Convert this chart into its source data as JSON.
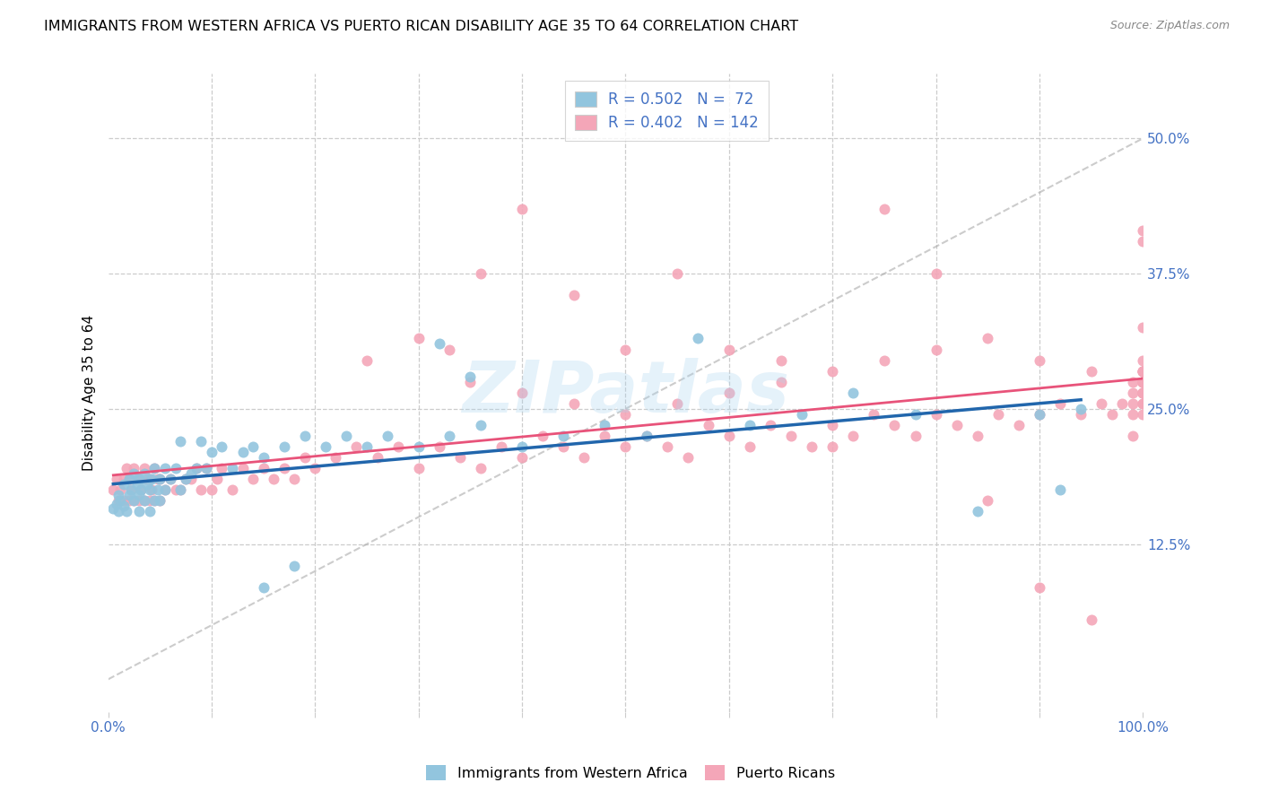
{
  "title": "IMMIGRANTS FROM WESTERN AFRICA VS PUERTO RICAN DISABILITY AGE 35 TO 64 CORRELATION CHART",
  "source": "Source: ZipAtlas.com",
  "ylabel": "Disability Age 35 to 64",
  "xlim": [
    0.0,
    1.0
  ],
  "ylim": [
    -0.03,
    0.56
  ],
  "blue_color": "#92c5de",
  "pink_color": "#f4a6b8",
  "blue_line_color": "#2166ac",
  "pink_line_color": "#e8537a",
  "watermark_text": "ZIPatlas",
  "title_fontsize": 11.5,
  "label_fontsize": 11,
  "tick_fontsize": 11,
  "y_tick_vals": [
    0.125,
    0.25,
    0.375,
    0.5
  ],
  "y_tick_labels": [
    "12.5%",
    "25.0%",
    "37.5%",
    "50.0%"
  ],
  "blue_scatter_x": [
    0.005,
    0.008,
    0.01,
    0.01,
    0.012,
    0.015,
    0.015,
    0.018,
    0.02,
    0.02,
    0.022,
    0.025,
    0.025,
    0.028,
    0.03,
    0.03,
    0.03,
    0.032,
    0.035,
    0.035,
    0.038,
    0.04,
    0.04,
    0.042,
    0.045,
    0.045,
    0.048,
    0.05,
    0.05,
    0.055,
    0.055,
    0.06,
    0.065,
    0.07,
    0.07,
    0.075,
    0.08,
    0.085,
    0.09,
    0.095,
    0.1,
    0.11,
    0.12,
    0.13,
    0.14,
    0.15,
    0.17,
    0.19,
    0.21,
    0.23,
    0.25,
    0.27,
    0.3,
    0.33,
    0.36,
    0.4,
    0.44,
    0.48,
    0.52,
    0.57,
    0.62,
    0.67,
    0.72,
    0.78,
    0.84,
    0.9,
    0.92,
    0.94,
    0.32,
    0.35,
    0.15,
    0.18
  ],
  "blue_scatter_y": [
    0.158,
    0.162,
    0.155,
    0.17,
    0.165,
    0.18,
    0.16,
    0.155,
    0.185,
    0.17,
    0.175,
    0.165,
    0.19,
    0.18,
    0.155,
    0.17,
    0.185,
    0.175,
    0.165,
    0.19,
    0.18,
    0.155,
    0.175,
    0.185,
    0.165,
    0.195,
    0.175,
    0.165,
    0.185,
    0.175,
    0.195,
    0.185,
    0.195,
    0.175,
    0.22,
    0.185,
    0.19,
    0.195,
    0.22,
    0.195,
    0.21,
    0.215,
    0.195,
    0.21,
    0.215,
    0.205,
    0.215,
    0.225,
    0.215,
    0.225,
    0.215,
    0.225,
    0.215,
    0.225,
    0.235,
    0.215,
    0.225,
    0.235,
    0.225,
    0.315,
    0.235,
    0.245,
    0.265,
    0.245,
    0.155,
    0.245,
    0.175,
    0.25,
    0.31,
    0.28,
    0.085,
    0.105
  ],
  "pink_scatter_x": [
    0.005,
    0.008,
    0.01,
    0.012,
    0.015,
    0.015,
    0.018,
    0.02,
    0.02,
    0.022,
    0.025,
    0.025,
    0.028,
    0.03,
    0.03,
    0.032,
    0.035,
    0.035,
    0.038,
    0.04,
    0.04,
    0.042,
    0.045,
    0.045,
    0.048,
    0.05,
    0.05,
    0.055,
    0.06,
    0.065,
    0.07,
    0.075,
    0.08,
    0.085,
    0.09,
    0.095,
    0.1,
    0.105,
    0.11,
    0.12,
    0.13,
    0.14,
    0.15,
    0.16,
    0.17,
    0.18,
    0.19,
    0.2,
    0.22,
    0.24,
    0.26,
    0.28,
    0.3,
    0.32,
    0.34,
    0.36,
    0.38,
    0.4,
    0.42,
    0.44,
    0.46,
    0.48,
    0.5,
    0.52,
    0.54,
    0.56,
    0.58,
    0.6,
    0.62,
    0.64,
    0.66,
    0.68,
    0.7,
    0.72,
    0.74,
    0.76,
    0.78,
    0.8,
    0.82,
    0.84,
    0.86,
    0.88,
    0.9,
    0.92,
    0.94,
    0.96,
    0.97,
    0.98,
    0.99,
    0.99,
    0.99,
    1.0,
    1.0,
    1.0,
    1.0,
    1.0,
    1.0,
    1.0,
    1.0,
    1.0,
    1.0,
    1.0,
    1.0,
    1.0,
    0.33,
    0.36,
    0.4,
    0.45,
    0.5,
    0.55,
    0.6,
    0.65,
    0.7,
    0.75,
    0.8,
    0.85,
    0.9,
    0.95,
    0.99,
    1.0,
    1.0,
    1.0,
    0.25,
    0.3,
    0.35,
    0.4,
    0.45,
    0.5,
    0.55,
    0.6,
    0.65,
    0.7,
    0.75,
    0.8,
    0.85,
    0.9,
    0.95,
    0.99,
    1.0,
    1.0,
    1.0,
    1.0,
    1.0,
    1.0
  ],
  "pink_scatter_y": [
    0.175,
    0.185,
    0.165,
    0.175,
    0.165,
    0.185,
    0.195,
    0.165,
    0.185,
    0.175,
    0.165,
    0.195,
    0.185,
    0.165,
    0.185,
    0.175,
    0.165,
    0.195,
    0.185,
    0.165,
    0.185,
    0.175,
    0.165,
    0.195,
    0.185,
    0.165,
    0.185,
    0.175,
    0.185,
    0.175,
    0.175,
    0.185,
    0.185,
    0.195,
    0.175,
    0.195,
    0.175,
    0.185,
    0.195,
    0.175,
    0.195,
    0.185,
    0.195,
    0.185,
    0.195,
    0.185,
    0.205,
    0.195,
    0.205,
    0.215,
    0.205,
    0.215,
    0.195,
    0.215,
    0.205,
    0.195,
    0.215,
    0.205,
    0.225,
    0.215,
    0.205,
    0.225,
    0.215,
    0.225,
    0.215,
    0.205,
    0.235,
    0.225,
    0.215,
    0.235,
    0.225,
    0.215,
    0.235,
    0.225,
    0.245,
    0.235,
    0.225,
    0.245,
    0.235,
    0.225,
    0.245,
    0.235,
    0.245,
    0.255,
    0.245,
    0.255,
    0.245,
    0.255,
    0.245,
    0.265,
    0.255,
    0.265,
    0.275,
    0.265,
    0.275,
    0.285,
    0.265,
    0.275,
    0.285,
    0.275,
    0.285,
    0.295,
    0.275,
    0.285,
    0.305,
    0.375,
    0.435,
    0.355,
    0.305,
    0.375,
    0.305,
    0.295,
    0.215,
    0.435,
    0.375,
    0.165,
    0.085,
    0.055,
    0.225,
    0.415,
    0.325,
    0.405,
    0.295,
    0.315,
    0.275,
    0.265,
    0.255,
    0.245,
    0.255,
    0.265,
    0.275,
    0.285,
    0.295,
    0.305,
    0.315,
    0.295,
    0.285,
    0.275,
    0.265,
    0.255,
    0.245,
    0.255,
    0.265,
    0.275
  ]
}
